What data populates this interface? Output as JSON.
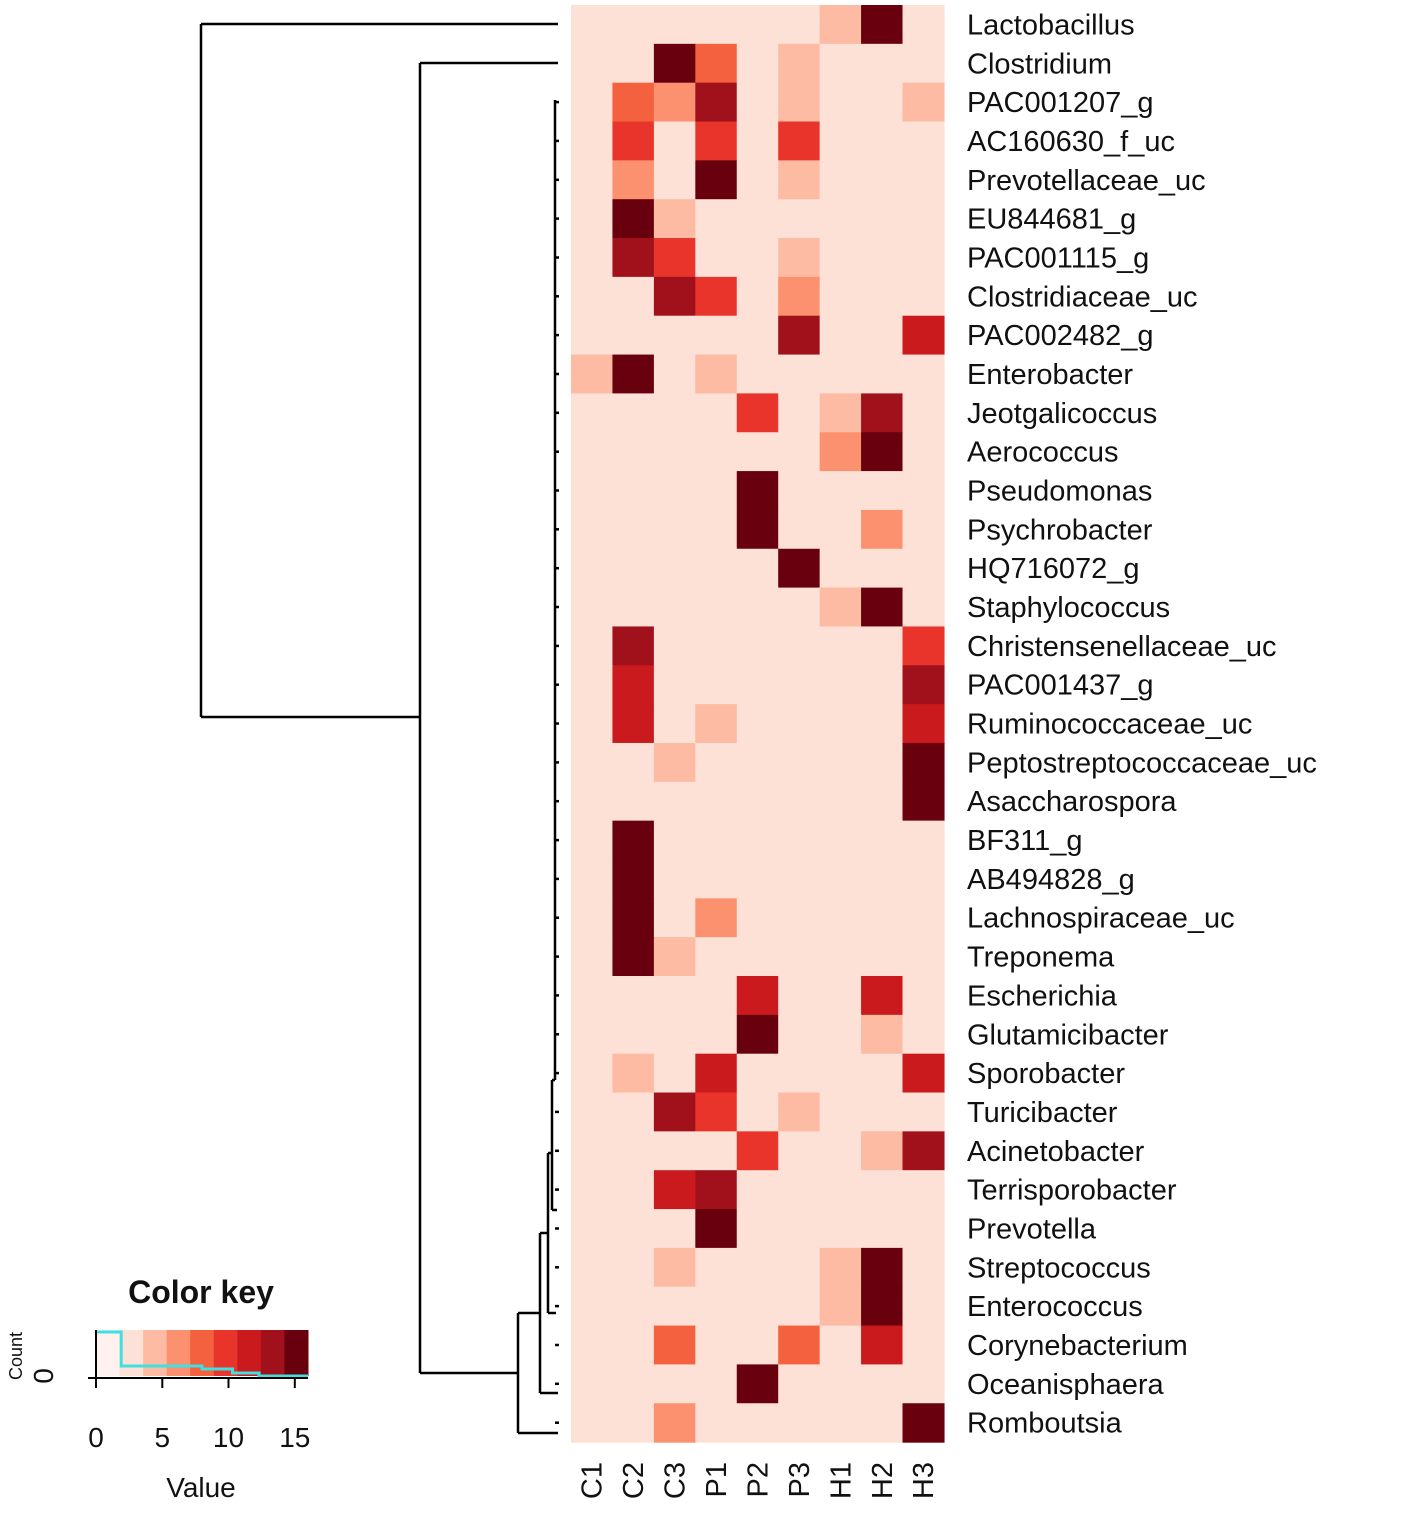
{
  "chart_data": {
    "type": "heatmap",
    "title": "",
    "columns": [
      "C1",
      "C2",
      "C3",
      "P1",
      "P2",
      "P3",
      "H1",
      "H2",
      "H3"
    ],
    "rows": [
      "Lactobacillus",
      "Clostridium",
      "PAC001207_g",
      "AC160630_f_uc",
      "Prevotellaceae_uc",
      "EU844681_g",
      "PAC001115_g",
      "Clostridiaceae_uc",
      "PAC002482_g",
      "Enterobacter",
      "Jeotgalicoccus",
      "Aerococcus",
      "Pseudomonas",
      "Psychrobacter",
      "HQ716072_g",
      "Staphylococcus",
      "Christensenellaceae_uc",
      "PAC001437_g",
      "Ruminococcaceae_uc",
      "Peptostreptococcaceae_uc",
      "Asaccharospora",
      "BF311_g",
      "AB494828_g",
      "Lachnospiraceae_uc",
      "Treponema",
      "Escherichia",
      "Glutamicibacter",
      "Sporobacter",
      "Turicibacter",
      "Acinetobacter",
      "Terrisporobacter",
      "Prevotella",
      "Streptococcus",
      "Enterococcus",
      "Corynebacterium",
      "Oceanisphaera",
      "Romboutsia"
    ],
    "values": [
      [
        2,
        2,
        2,
        2,
        2,
        2,
        4,
        16,
        2
      ],
      [
        1,
        1,
        16,
        8,
        1,
        4,
        1,
        1,
        2
      ],
      [
        1,
        8,
        6,
        14,
        1,
        4,
        1,
        1,
        4
      ],
      [
        1,
        10,
        1,
        10,
        1,
        10,
        1,
        1,
        2
      ],
      [
        1,
        6,
        1,
        16,
        1,
        4,
        1,
        1,
        1
      ],
      [
        2,
        16,
        4,
        2,
        2,
        2,
        2,
        2,
        2
      ],
      [
        1,
        14,
        10,
        2,
        1,
        4,
        1,
        1,
        1
      ],
      [
        1,
        1,
        14,
        10,
        1,
        6,
        1,
        1,
        2
      ],
      [
        2,
        1,
        1,
        1,
        1,
        14,
        1,
        1,
        12
      ],
      [
        4,
        16,
        2,
        4,
        2,
        2,
        2,
        2,
        2
      ],
      [
        1,
        1,
        2,
        1,
        10,
        1,
        4,
        14,
        1
      ],
      [
        2,
        2,
        2,
        2,
        2,
        2,
        6,
        16,
        2
      ],
      [
        2,
        2,
        2,
        2,
        16,
        2,
        2,
        2,
        2
      ],
      [
        2,
        2,
        2,
        2,
        16,
        2,
        2,
        6,
        2
      ],
      [
        2,
        2,
        2,
        2,
        2,
        16,
        2,
        2,
        2
      ],
      [
        2,
        2,
        2,
        2,
        2,
        2,
        4,
        16,
        2
      ],
      [
        1,
        14,
        2,
        2,
        1,
        2,
        1,
        1,
        10
      ],
      [
        1,
        12,
        2,
        2,
        1,
        2,
        1,
        1,
        14
      ],
      [
        1,
        12,
        2,
        4,
        1,
        1,
        1,
        1,
        12
      ],
      [
        2,
        2,
        4,
        2,
        2,
        2,
        2,
        2,
        16
      ],
      [
        2,
        2,
        2,
        2,
        2,
        2,
        2,
        2,
        16
      ],
      [
        2,
        16,
        2,
        2,
        2,
        2,
        2,
        2,
        2
      ],
      [
        2,
        16,
        2,
        2,
        2,
        2,
        2,
        2,
        2
      ],
      [
        2,
        16,
        2,
        6,
        2,
        2,
        2,
        2,
        2
      ],
      [
        2,
        16,
        4,
        2,
        2,
        2,
        2,
        2,
        2
      ],
      [
        1,
        1,
        1,
        1,
        12,
        1,
        2,
        12,
        2
      ],
      [
        2,
        2,
        2,
        2,
        16,
        2,
        2,
        4,
        2
      ],
      [
        1,
        4,
        2,
        12,
        1,
        2,
        1,
        1,
        12
      ],
      [
        1,
        1,
        14,
        10,
        1,
        4,
        1,
        1,
        2
      ],
      [
        1,
        1,
        1,
        1,
        10,
        1,
        1,
        3,
        14
      ],
      [
        2,
        2,
        12,
        14,
        2,
        2,
        1,
        1,
        1
      ],
      [
        2,
        2,
        2,
        16,
        2,
        2,
        2,
        2,
        2
      ],
      [
        2,
        2,
        4,
        2,
        2,
        2,
        4,
        16,
        2
      ],
      [
        2,
        2,
        2,
        2,
        2,
        2,
        4,
        16,
        2
      ],
      [
        1,
        1,
        8,
        1,
        2,
        8,
        2,
        12,
        1
      ],
      [
        2,
        2,
        2,
        2,
        16,
        2,
        2,
        2,
        2
      ],
      [
        2,
        2,
        6,
        2,
        2,
        2,
        2,
        2,
        16
      ]
    ],
    "color_scale": [
      "#fff2ee",
      "#fde0d6",
      "#fcbba2",
      "#fb916f",
      "#f4613e",
      "#e8342a",
      "#ca1a1e",
      "#a1111c",
      "#68000d"
    ],
    "value_range": [
      0,
      16
    ],
    "color_key": {
      "title": "Color key",
      "xlabel": "Value",
      "ylabel": "Count",
      "ytick": "0",
      "ticks": [
        0,
        5,
        10,
        15
      ],
      "histogram_color": "#3ee0e0"
    },
    "dendrogram": "row"
  }
}
